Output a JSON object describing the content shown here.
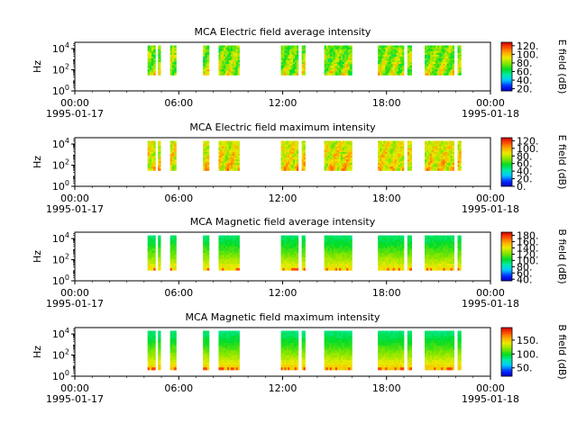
{
  "chart_data": [
    {
      "type": "heatmap",
      "title": "MCA  Electric field average intensity",
      "ylabel": "Hz",
      "colorbar_label": "E field (dB)",
      "colorbar_ticks": [
        "20.",
        "40.",
        "60.",
        "80.",
        "100.",
        "120."
      ],
      "colorbar_range": [
        15,
        128
      ],
      "yticks": [
        {
          "base": "10",
          "exp": "0"
        },
        {
          "base": "10",
          "exp": "2"
        },
        {
          "base": "10",
          "exp": "4"
        }
      ],
      "ylim_log10": [
        0,
        4.6
      ],
      "data_band_log10": [
        1.5,
        4.3
      ],
      "xticks": [
        "00:00",
        "06:00",
        "12:00",
        "18:00",
        "00:00"
      ],
      "xtick_hours": [
        0,
        6,
        12,
        18,
        24
      ],
      "date_start": "1995-01-17",
      "date_end": "1995-01-18",
      "intervals_hours": [
        [
          4.2,
          4.65
        ],
        [
          4.8,
          4.95
        ],
        [
          5.5,
          5.85
        ],
        [
          7.4,
          7.75
        ],
        [
          8.3,
          9.5
        ],
        [
          11.9,
          12.9
        ],
        [
          13.1,
          13.3
        ],
        [
          14.4,
          16.0
        ],
        [
          17.5,
          19.0
        ],
        [
          19.2,
          19.45
        ],
        [
          20.2,
          21.9
        ],
        [
          22.1,
          22.3
        ]
      ],
      "level_low": 55,
      "level_high": 110,
      "pattern": "structured"
    },
    {
      "type": "heatmap",
      "title": "MCA  Electric field maximum intensity",
      "ylabel": "Hz",
      "colorbar_label": "E field (dB)",
      "colorbar_ticks": [
        "0.",
        "20.",
        "40.",
        "60.",
        "80.",
        "100.",
        "120."
      ],
      "colorbar_range": [
        0,
        128
      ],
      "yticks": [
        {
          "base": "10",
          "exp": "0"
        },
        {
          "base": "10",
          "exp": "2"
        },
        {
          "base": "10",
          "exp": "4"
        }
      ],
      "ylim_log10": [
        0,
        4.6
      ],
      "data_band_log10": [
        1.5,
        4.3
      ],
      "xticks": [
        "00:00",
        "06:00",
        "12:00",
        "18:00",
        "00:00"
      ],
      "xtick_hours": [
        0,
        6,
        12,
        18,
        24
      ],
      "date_start": "1995-01-17",
      "date_end": "1995-01-18",
      "intervals_hours": [
        [
          4.2,
          4.65
        ],
        [
          4.8,
          4.95
        ],
        [
          5.5,
          5.85
        ],
        [
          7.4,
          7.75
        ],
        [
          8.3,
          9.5
        ],
        [
          11.9,
          12.9
        ],
        [
          13.1,
          13.3
        ],
        [
          14.4,
          16.0
        ],
        [
          17.5,
          19.0
        ],
        [
          19.2,
          19.45
        ],
        [
          20.2,
          21.9
        ],
        [
          22.1,
          22.3
        ]
      ],
      "level_low": 65,
      "level_high": 115,
      "pattern": "structured"
    },
    {
      "type": "heatmap",
      "title": "MCA  Magnetic field average intensity",
      "ylabel": "Hz",
      "colorbar_label": "B field (dB)",
      "colorbar_ticks": [
        "40.",
        "60.",
        "80.",
        "100.",
        "120.",
        "140.",
        "160.",
        "180."
      ],
      "colorbar_range": [
        35,
        190
      ],
      "yticks": [
        {
          "base": "10",
          "exp": "0"
        },
        {
          "base": "10",
          "exp": "2"
        },
        {
          "base": "10",
          "exp": "4"
        }
      ],
      "ylim_log10": [
        0,
        4.6
      ],
      "data_band_log10": [
        1.0,
        4.3
      ],
      "xticks": [
        "00:00",
        "06:00",
        "12:00",
        "18:00",
        "00:00"
      ],
      "xtick_hours": [
        0,
        6,
        12,
        18,
        24
      ],
      "date_start": "1995-01-17",
      "date_end": "1995-01-18",
      "intervals_hours": [
        [
          4.2,
          4.65
        ],
        [
          4.8,
          4.95
        ],
        [
          5.5,
          5.85
        ],
        [
          7.4,
          7.75
        ],
        [
          8.3,
          9.5
        ],
        [
          11.9,
          12.9
        ],
        [
          13.1,
          13.3
        ],
        [
          14.4,
          16.0
        ],
        [
          17.5,
          19.0
        ],
        [
          19.2,
          19.45
        ],
        [
          20.2,
          21.9
        ],
        [
          22.1,
          22.3
        ]
      ],
      "level_low": 95,
      "level_high": 145,
      "pattern": "vertical"
    },
    {
      "type": "heatmap",
      "title": "MCA  Magnetic field maximum intensity",
      "ylabel": "Hz",
      "colorbar_label": "B field (dB)",
      "colorbar_ticks": [
        "50.",
        "100.",
        "150."
      ],
      "colorbar_range": [
        20,
        195
      ],
      "yticks": [
        {
          "base": "10",
          "exp": "0"
        },
        {
          "base": "10",
          "exp": "2"
        },
        {
          "base": "10",
          "exp": "4"
        }
      ],
      "ylim_log10": [
        0,
        4.6
      ],
      "data_band_log10": [
        0.6,
        4.3
      ],
      "xticks": [
        "00:00",
        "06:00",
        "12:00",
        "18:00",
        "00:00"
      ],
      "xtick_hours": [
        0,
        6,
        12,
        18,
        24
      ],
      "date_start": "1995-01-17",
      "date_end": "1995-01-18",
      "intervals_hours": [
        [
          4.2,
          4.65
        ],
        [
          4.8,
          4.95
        ],
        [
          5.5,
          5.85
        ],
        [
          7.4,
          7.75
        ],
        [
          8.3,
          9.5
        ],
        [
          11.9,
          12.9
        ],
        [
          13.1,
          13.3
        ],
        [
          14.4,
          16.0
        ],
        [
          17.5,
          19.0
        ],
        [
          19.2,
          19.45
        ],
        [
          20.2,
          21.9
        ],
        [
          22.1,
          22.3
        ]
      ],
      "level_low": 85,
      "level_high": 150,
      "pattern": "vertical"
    }
  ]
}
